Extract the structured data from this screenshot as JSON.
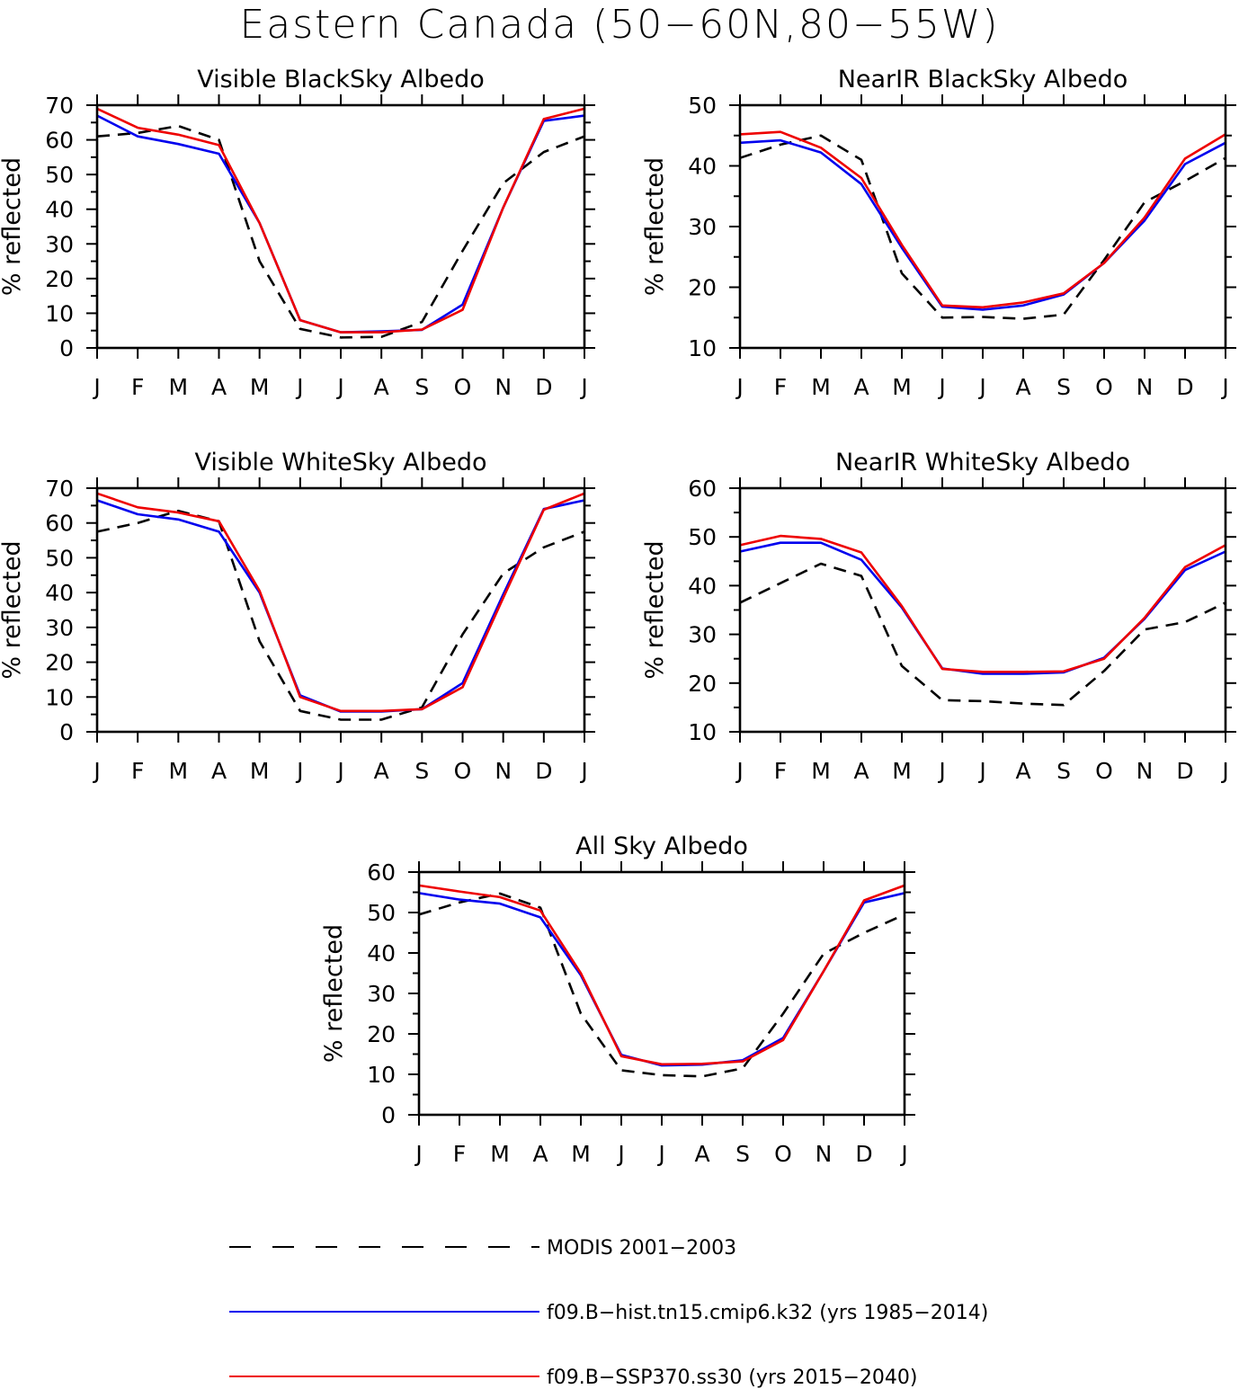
{
  "title": "Eastern Canada (50−60N,80−55W)",
  "colors": {
    "modis": "#000000",
    "hist": "#0000ee",
    "ssp": "#ee0000"
  },
  "legend": [
    {
      "key": "modis",
      "label": "MODIS 2001−2003",
      "style": "dashed"
    },
    {
      "key": "hist",
      "label": "f09.B−hist.tn15.cmip6.k32 (yrs 1985−2014)",
      "style": "solid"
    },
    {
      "key": "ssp",
      "label": "f09.B−SSP370.ss30 (yrs 2015−2040)",
      "style": "solid"
    }
  ],
  "chart_data": [
    {
      "type": "line",
      "title": "Visible BlackSky Albedo",
      "ylabel": "% reflected",
      "categories": [
        "J",
        "F",
        "M",
        "A",
        "M",
        "J",
        "J",
        "A",
        "S",
        "O",
        "N",
        "D",
        "J"
      ],
      "ylim": [
        0,
        70
      ],
      "yticks": [
        0,
        10,
        20,
        30,
        40,
        50,
        60,
        70
      ],
      "series": [
        {
          "key": "modis",
          "values": [
            61,
            62,
            64,
            60,
            25,
            5.5,
            3,
            3.2,
            7.5,
            28,
            47.5,
            56.5,
            61
          ]
        },
        {
          "key": "hist",
          "values": [
            67,
            61,
            58.8,
            56,
            36,
            8,
            4.5,
            4.8,
            5.2,
            12.5,
            40.5,
            65.5,
            67
          ]
        },
        {
          "key": "ssp",
          "values": [
            69,
            63.5,
            61.5,
            58.5,
            36,
            8,
            4.5,
            4.5,
            5.3,
            11,
            40.5,
            66,
            69
          ]
        }
      ]
    },
    {
      "type": "line",
      "title": "NearIR BlackSky Albedo",
      "ylabel": "% reflected",
      "categories": [
        "J",
        "F",
        "M",
        "A",
        "M",
        "J",
        "J",
        "A",
        "S",
        "O",
        "N",
        "D",
        "J"
      ],
      "ylim": [
        10,
        50
      ],
      "yticks": [
        10,
        20,
        30,
        40,
        50
      ],
      "series": [
        {
          "key": "modis",
          "values": [
            41.3,
            43.5,
            45,
            41,
            22.3,
            15,
            15.1,
            14.8,
            15.5,
            24.5,
            34,
            37.5,
            41.3
          ]
        },
        {
          "key": "hist",
          "values": [
            43.8,
            44.2,
            42.2,
            37,
            26.5,
            16.8,
            16.3,
            17,
            18.8,
            24,
            31,
            40.3,
            43.8
          ]
        },
        {
          "key": "ssp",
          "values": [
            45.2,
            45.6,
            43,
            38,
            27,
            17,
            16.7,
            17.5,
            19,
            24,
            31.5,
            41.2,
            45.2
          ]
        }
      ]
    },
    {
      "type": "line",
      "title": "Visible WhiteSky Albedo",
      "ylabel": "% reflected",
      "categories": [
        "J",
        "F",
        "M",
        "A",
        "M",
        "J",
        "J",
        "A",
        "S",
        "O",
        "N",
        "D",
        "J"
      ],
      "ylim": [
        0,
        70
      ],
      "yticks": [
        0,
        10,
        20,
        30,
        40,
        50,
        60,
        70
      ],
      "series": [
        {
          "key": "modis",
          "values": [
            57.5,
            60,
            63.5,
            60.5,
            26,
            6,
            3.5,
            3.5,
            7,
            28,
            45.5,
            53,
            57.5
          ]
        },
        {
          "key": "hist",
          "values": [
            66.5,
            62.5,
            61,
            57.5,
            40,
            10.5,
            5.8,
            5.8,
            6.5,
            14,
            39.5,
            64,
            66.5
          ]
        },
        {
          "key": "ssp",
          "values": [
            68.5,
            64.5,
            63,
            60.5,
            40.5,
            10,
            6,
            6,
            6.5,
            12.8,
            38.5,
            63.8,
            68.5
          ]
        }
      ]
    },
    {
      "type": "line",
      "title": "NearIR WhiteSky Albedo",
      "ylabel": "% reflected",
      "categories": [
        "J",
        "F",
        "M",
        "A",
        "M",
        "J",
        "J",
        "A",
        "S",
        "O",
        "N",
        "D",
        "J"
      ],
      "ylim": [
        10,
        60
      ],
      "yticks": [
        10,
        20,
        30,
        40,
        50,
        60
      ],
      "series": [
        {
          "key": "modis",
          "values": [
            36.5,
            40.5,
            44.5,
            42,
            23.5,
            16.5,
            16.3,
            15.8,
            15.5,
            22.5,
            31,
            32.5,
            36.5
          ]
        },
        {
          "key": "hist",
          "values": [
            47,
            48.8,
            48.8,
            45.3,
            35.5,
            23,
            21.9,
            21.9,
            22.2,
            25.2,
            33.2,
            43.2,
            47
          ]
        },
        {
          "key": "ssp",
          "values": [
            48.3,
            50.2,
            49.6,
            46.8,
            35.8,
            22.9,
            22.3,
            22.3,
            22.4,
            25,
            33.4,
            43.8,
            48.3
          ]
        }
      ]
    },
    {
      "type": "line",
      "title": "All Sky Albedo",
      "ylabel": "% reflected",
      "categories": [
        "J",
        "F",
        "M",
        "A",
        "M",
        "J",
        "J",
        "A",
        "S",
        "O",
        "N",
        "D",
        "J"
      ],
      "ylim": [
        0,
        60
      ],
      "yticks": [
        0,
        10,
        20,
        30,
        40,
        50,
        60
      ],
      "series": [
        {
          "key": "modis",
          "values": [
            49.5,
            52.5,
            54.7,
            51.2,
            25,
            11,
            9.8,
            9.5,
            11.5,
            25,
            39.8,
            45,
            49.5
          ]
        },
        {
          "key": "hist",
          "values": [
            54.8,
            53.2,
            52.2,
            48.8,
            34.5,
            14.8,
            12.2,
            12.4,
            13.5,
            19,
            35.5,
            52.5,
            54.8
          ]
        },
        {
          "key": "ssp",
          "values": [
            56.7,
            55.2,
            53.8,
            50.5,
            35,
            14.5,
            12.5,
            12.6,
            13.2,
            18.5,
            35.5,
            53,
            56.7
          ]
        }
      ]
    }
  ]
}
